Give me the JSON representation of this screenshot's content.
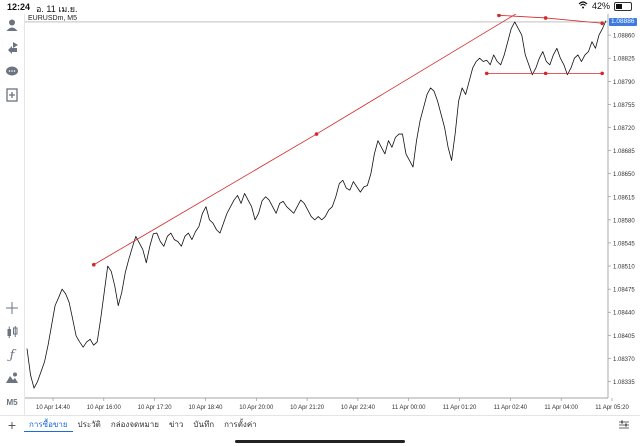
{
  "status": {
    "time": "12:24",
    "date": "อ. 11 เม.ย.",
    "battery": "42%",
    "battery_level": 0.42
  },
  "symbol_label": "EURUSDm, M5",
  "toolbar_icons": [
    "profile-icon",
    "trade-icon",
    "chat-icon",
    "add-document-icon",
    "crosshair-icon",
    "candlestick-icon",
    "function-icon",
    "objects-icon"
  ],
  "timeframe_label": "M5",
  "current_price": "1.08886",
  "tabs": [
    "การซื้อขาย",
    "ประวัติ",
    "กล่องจดหมาย",
    "ข่าว",
    "บันทึก",
    "การตั้งค่า"
  ],
  "chart_data": {
    "type": "line",
    "title": "",
    "series": [
      {
        "values": [
          1.08385,
          1.08345,
          1.08325,
          1.08335,
          1.0835,
          1.08365,
          1.0839,
          1.0842,
          1.0845,
          1.08462,
          1.08475,
          1.08468,
          1.08455,
          1.0843,
          1.08404,
          1.08395,
          1.08387,
          1.08395,
          1.08399,
          1.0839,
          1.08395,
          1.0843,
          1.0847,
          1.0851,
          1.08502,
          1.0848,
          1.0845,
          1.0847,
          1.085,
          1.0852,
          1.08538,
          1.08555,
          1.08545,
          1.08535,
          1.08515,
          1.0854,
          1.08559,
          1.0856,
          1.08547,
          1.0854,
          1.08555,
          1.0856,
          1.0855,
          1.08547,
          1.0854,
          1.08555,
          1.0856,
          1.0855,
          1.08562,
          1.0857,
          1.0859,
          1.086,
          1.0858,
          1.08575,
          1.08565,
          1.0856,
          1.08575,
          1.0859,
          1.086,
          1.0861,
          1.08617,
          1.08605,
          1.0862,
          1.0861,
          1.086,
          1.0858,
          1.0859,
          1.08609,
          1.08615,
          1.0861,
          1.086,
          1.0859,
          1.08605,
          1.08608,
          1.086,
          1.08595,
          1.0859,
          1.086,
          1.0861,
          1.08605,
          1.08595,
          1.08585,
          1.0858,
          1.08585,
          1.0858,
          1.08585,
          1.08595,
          1.086,
          1.08615,
          1.08635,
          1.0864,
          1.08628,
          1.08625,
          1.08638,
          1.0863,
          1.08622,
          1.0863,
          1.08632,
          1.0865,
          1.0868,
          1.087,
          1.0869,
          1.0868,
          1.087,
          1.0869,
          1.08705,
          1.0871,
          1.0871,
          1.0868,
          1.0867,
          1.0866,
          1.087,
          1.0873,
          1.0875,
          1.0877,
          1.0878,
          1.08775,
          1.0876,
          1.0874,
          1.0872,
          1.0869,
          1.0867,
          1.0871,
          1.0876,
          1.0878,
          1.0877,
          1.0879,
          1.0881,
          1.0882,
          1.08825,
          1.0882,
          1.08822,
          1.08815,
          1.0883,
          1.0882,
          1.08815,
          1.0883,
          1.0885,
          1.0887,
          1.0888,
          1.0887,
          1.0886,
          1.0883,
          1.08815,
          1.088,
          1.0881,
          1.08825,
          1.08835,
          1.0882,
          1.08815,
          1.0883,
          1.0884,
          1.08825,
          1.08815,
          1.088,
          1.0881,
          1.08825,
          1.0883,
          1.0882,
          1.0883,
          1.08835,
          1.0885,
          1.0884,
          1.0886,
          1.0887,
          1.08882
        ]
      }
    ],
    "x_tick_labels": [
      "10 Apr 14:40",
      "10 Apr 16:00",
      "10 Apr 17:20",
      "10 Apr 18:40",
      "10 Apr 20:00",
      "10 Apr 21:20",
      "10 Apr 22:40",
      "11 Apr 00:00",
      "11 Apr 01:20",
      "11 Apr 02:40",
      "11 Apr 04:00",
      "11 Apr 05:20"
    ],
    "y_tick_labels": [
      "1.08860",
      "1.08825",
      "1.08790",
      "1.08755",
      "1.08720",
      "1.08685",
      "1.08650",
      "1.08615",
      "1.08580",
      "1.08545",
      "1.08510",
      "1.08475",
      "1.08440",
      "1.08405",
      "1.08370",
      "1.08335"
    ],
    "ylim": [
      1.0831,
      1.08892
    ],
    "grid": false,
    "price_line": 1.0888,
    "trendlines": [
      {
        "color": "#d62728",
        "points": [
          [
            0.118,
            1.08512
          ],
          [
            0.5,
            1.0871
          ],
          [
            0.885,
            1.08915
          ]
        ]
      },
      {
        "color": "#d62728",
        "points": [
          [
            0.813,
            1.0889
          ],
          [
            0.893,
            1.08886
          ],
          [
            0.99,
            1.08878
          ]
        ]
      },
      {
        "color": "#d62728",
        "points": [
          [
            0.792,
            1.08802
          ],
          [
            0.893,
            1.08802
          ],
          [
            0.99,
            1.08802
          ]
        ]
      }
    ],
    "colors": {
      "line": "#111111",
      "trend": "#d62728",
      "price": "#3d7be0"
    }
  }
}
